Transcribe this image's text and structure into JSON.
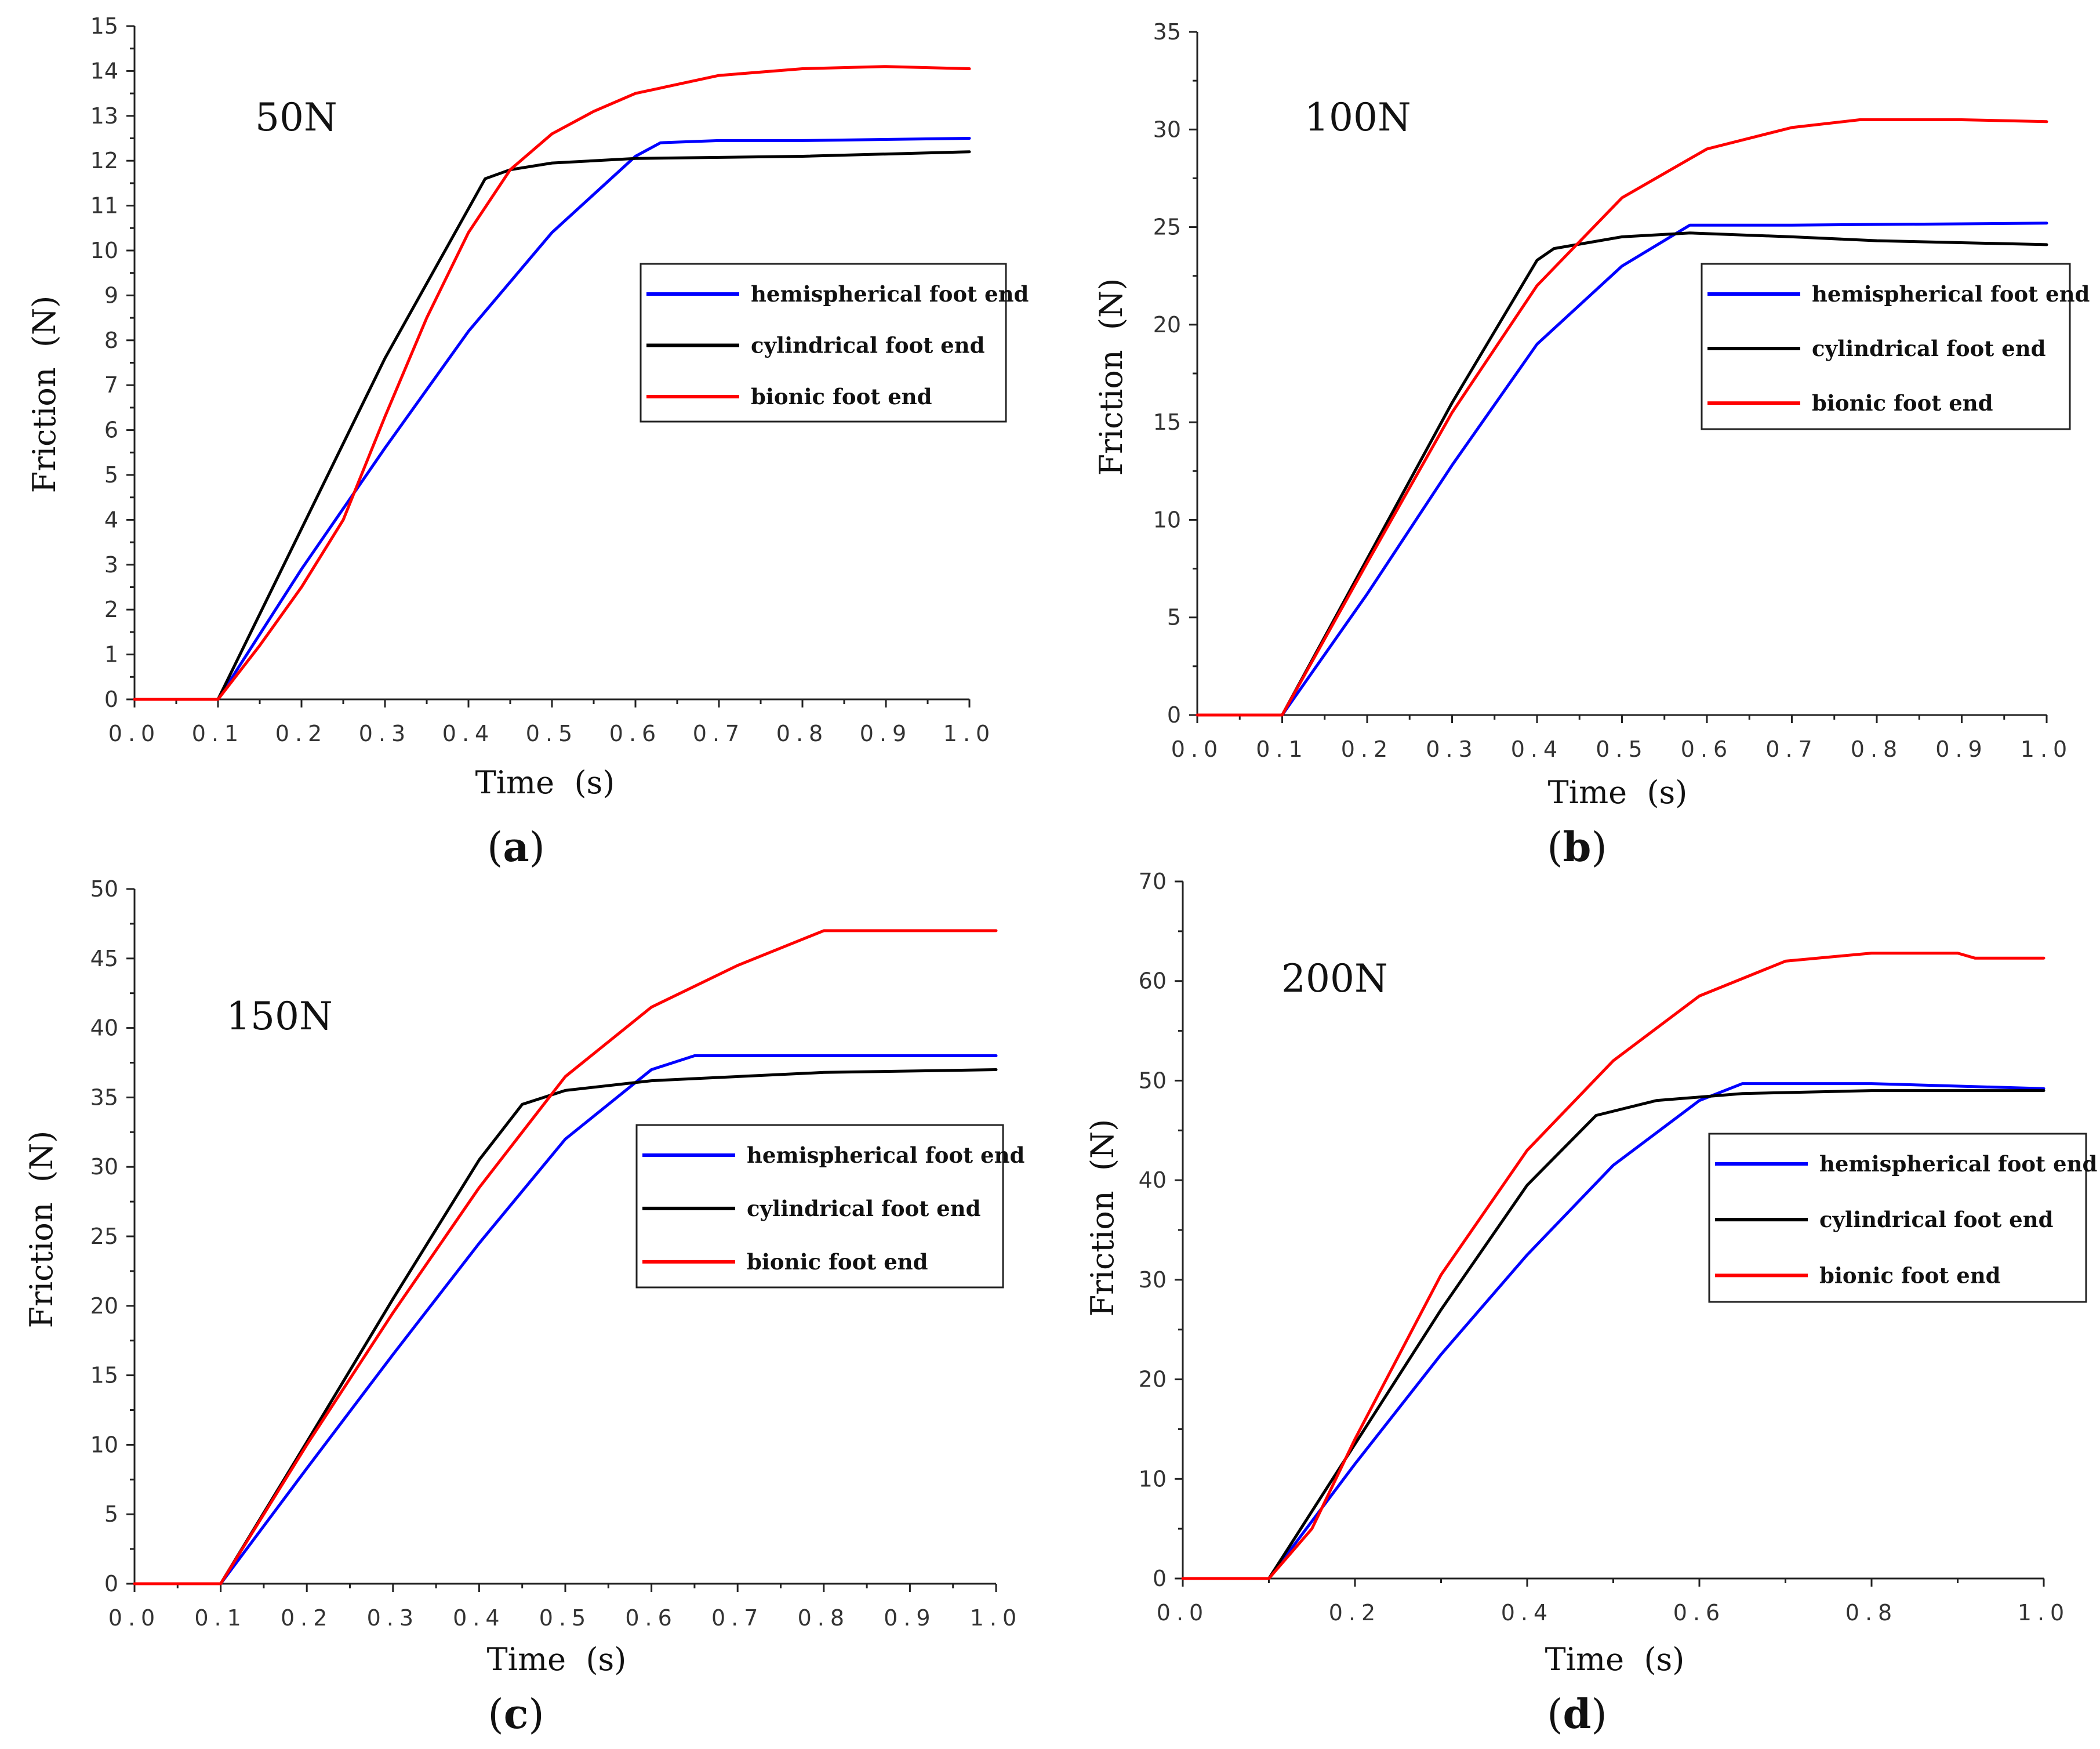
{
  "chart_data": [
    {
      "type": "line",
      "panel_label": "a",
      "load_label": "50N",
      "xlabel": "Time  (s)",
      "ylabel": "Friction  (N)",
      "xlim": [
        0,
        1.0
      ],
      "ylim": [
        0,
        15
      ],
      "xticks": [
        "0.0",
        "0.1",
        "0.2",
        "0.3",
        "0.4",
        "0.5",
        "0.6",
        "0.7",
        "0.8",
        "0.9",
        "1.0"
      ],
      "yticks": [
        "0",
        "1",
        "2",
        "3",
        "4",
        "5",
        "6",
        "7",
        "8",
        "9",
        "10",
        "11",
        "12",
        "13",
        "14",
        "15"
      ],
      "legend_position": "right",
      "series": [
        {
          "name": "hemispherical foot end",
          "color": "#0000ff",
          "x": [
            0,
            0.1,
            0.2,
            0.3,
            0.4,
            0.5,
            0.6,
            0.63,
            0.7,
            0.8,
            1.0
          ],
          "y": [
            0,
            0,
            2.9,
            5.6,
            8.2,
            10.4,
            12.1,
            12.4,
            12.45,
            12.45,
            12.5
          ]
        },
        {
          "name": "cylindrical foot end",
          "color": "#000000",
          "x": [
            0,
            0.1,
            0.2,
            0.3,
            0.42,
            0.45,
            0.5,
            0.6,
            0.8,
            1.0
          ],
          "y": [
            0,
            0,
            3.8,
            7.6,
            11.6,
            11.8,
            11.95,
            12.05,
            12.1,
            12.2
          ]
        },
        {
          "name": "bionic foot end",
          "color": "#ff0000",
          "x": [
            0,
            0.1,
            0.15,
            0.2,
            0.25,
            0.3,
            0.35,
            0.4,
            0.45,
            0.5,
            0.55,
            0.6,
            0.7,
            0.8,
            0.9,
            1.0
          ],
          "y": [
            0,
            0,
            1.2,
            2.5,
            4.0,
            6.3,
            8.5,
            10.4,
            11.8,
            12.6,
            13.1,
            13.5,
            13.9,
            14.05,
            14.1,
            14.05
          ]
        }
      ]
    },
    {
      "type": "line",
      "panel_label": "b",
      "load_label": "100N",
      "xlabel": "Time  (s)",
      "ylabel": "Friction  (N)",
      "xlim": [
        0,
        1.0
      ],
      "ylim": [
        0,
        35
      ],
      "xticks": [
        "0.0",
        "0.1",
        "0.2",
        "0.3",
        "0.4",
        "0.5",
        "0.6",
        "0.7",
        "0.8",
        "0.9",
        "1.0"
      ],
      "yticks": [
        "0",
        "5",
        "10",
        "15",
        "20",
        "25",
        "30",
        "35"
      ],
      "legend_position": "right",
      "series": [
        {
          "name": "hemispherical foot end",
          "color": "#0000ff",
          "x": [
            0,
            0.1,
            0.2,
            0.3,
            0.4,
            0.5,
            0.58,
            0.7,
            1.0
          ],
          "y": [
            0,
            0,
            6.2,
            12.8,
            19.0,
            23.0,
            25.1,
            25.1,
            25.2
          ]
        },
        {
          "name": "cylindrical foot end",
          "color": "#000000",
          "x": [
            0,
            0.1,
            0.2,
            0.3,
            0.4,
            0.42,
            0.5,
            0.58,
            0.7,
            0.8,
            1.0
          ],
          "y": [
            0,
            0,
            8.0,
            16.0,
            23.3,
            23.9,
            24.5,
            24.7,
            24.5,
            24.3,
            24.1
          ]
        },
        {
          "name": "bionic foot end",
          "color": "#ff0000",
          "x": [
            0,
            0.1,
            0.2,
            0.3,
            0.4,
            0.5,
            0.6,
            0.7,
            0.78,
            0.9,
            1.0
          ],
          "y": [
            0,
            0,
            7.8,
            15.5,
            22.0,
            26.5,
            29.0,
            30.1,
            30.5,
            30.5,
            30.4
          ]
        }
      ]
    },
    {
      "type": "line",
      "panel_label": "c",
      "load_label": "150N",
      "xlabel": "Time  (s)",
      "ylabel": "Friction  (N)",
      "xlim": [
        0,
        1.0
      ],
      "ylim": [
        0,
        50
      ],
      "xticks": [
        "0.0",
        "0.1",
        "0.2",
        "0.3",
        "0.4",
        "0.5",
        "0.6",
        "0.7",
        "0.8",
        "0.9",
        "1.0"
      ],
      "yticks": [
        "0",
        "5",
        "10",
        "15",
        "20",
        "25",
        "30",
        "35",
        "40",
        "45",
        "50"
      ],
      "legend_position": "right",
      "series": [
        {
          "name": "hemispherical foot end",
          "color": "#0000ff",
          "x": [
            0,
            0.1,
            0.2,
            0.3,
            0.4,
            0.5,
            0.6,
            0.65,
            1.0
          ],
          "y": [
            0,
            0,
            8.3,
            16.5,
            24.5,
            32.0,
            37.0,
            38.0,
            38.0
          ]
        },
        {
          "name": "cylindrical foot end",
          "color": "#000000",
          "x": [
            0,
            0.1,
            0.2,
            0.3,
            0.4,
            0.45,
            0.5,
            0.6,
            0.8,
            1.0
          ],
          "y": [
            0,
            0,
            10.2,
            20.5,
            30.5,
            34.5,
            35.5,
            36.2,
            36.8,
            37.0
          ]
        },
        {
          "name": "bionic foot end",
          "color": "#ff0000",
          "x": [
            0,
            0.1,
            0.2,
            0.3,
            0.4,
            0.5,
            0.6,
            0.7,
            0.8,
            1.0
          ],
          "y": [
            0,
            0,
            10.0,
            19.5,
            28.5,
            36.5,
            41.5,
            44.5,
            47.0,
            47.0
          ]
        }
      ]
    },
    {
      "type": "line",
      "panel_label": "d",
      "load_label": "200N",
      "xlabel": "Time  (s)",
      "ylabel": "Friction  (N)",
      "xlim": [
        0,
        1.0
      ],
      "ylim": [
        0,
        70
      ],
      "xticks": [
        "0.0",
        "0.2",
        "0.4",
        "0.6",
        "0.8",
        "1.0"
      ],
      "yticks": [
        "0",
        "10",
        "20",
        "30",
        "40",
        "50",
        "60",
        "70"
      ],
      "legend_position": "right",
      "series": [
        {
          "name": "hemispherical foot end",
          "color": "#0000ff",
          "x": [
            0,
            0.1,
            0.2,
            0.3,
            0.4,
            0.5,
            0.6,
            0.65,
            0.8,
            1.0
          ],
          "y": [
            0,
            0,
            11.5,
            22.5,
            32.5,
            41.5,
            48.0,
            49.7,
            49.7,
            49.2
          ]
        },
        {
          "name": "cylindrical foot end",
          "color": "#000000",
          "x": [
            0,
            0.1,
            0.2,
            0.3,
            0.4,
            0.48,
            0.55,
            0.65,
            0.8,
            1.0
          ],
          "y": [
            0,
            0,
            13.5,
            27.0,
            39.5,
            46.5,
            48.0,
            48.7,
            49.0,
            49.0
          ]
        },
        {
          "name": "bionic foot end",
          "color": "#ff0000",
          "x": [
            0,
            0.1,
            0.15,
            0.2,
            0.3,
            0.4,
            0.5,
            0.6,
            0.7,
            0.8,
            0.9,
            0.92,
            1.0
          ],
          "y": [
            0,
            0,
            5.0,
            14.0,
            30.5,
            43.0,
            52.0,
            58.5,
            62.0,
            62.8,
            62.8,
            62.3,
            62.3
          ]
        }
      ]
    }
  ]
}
